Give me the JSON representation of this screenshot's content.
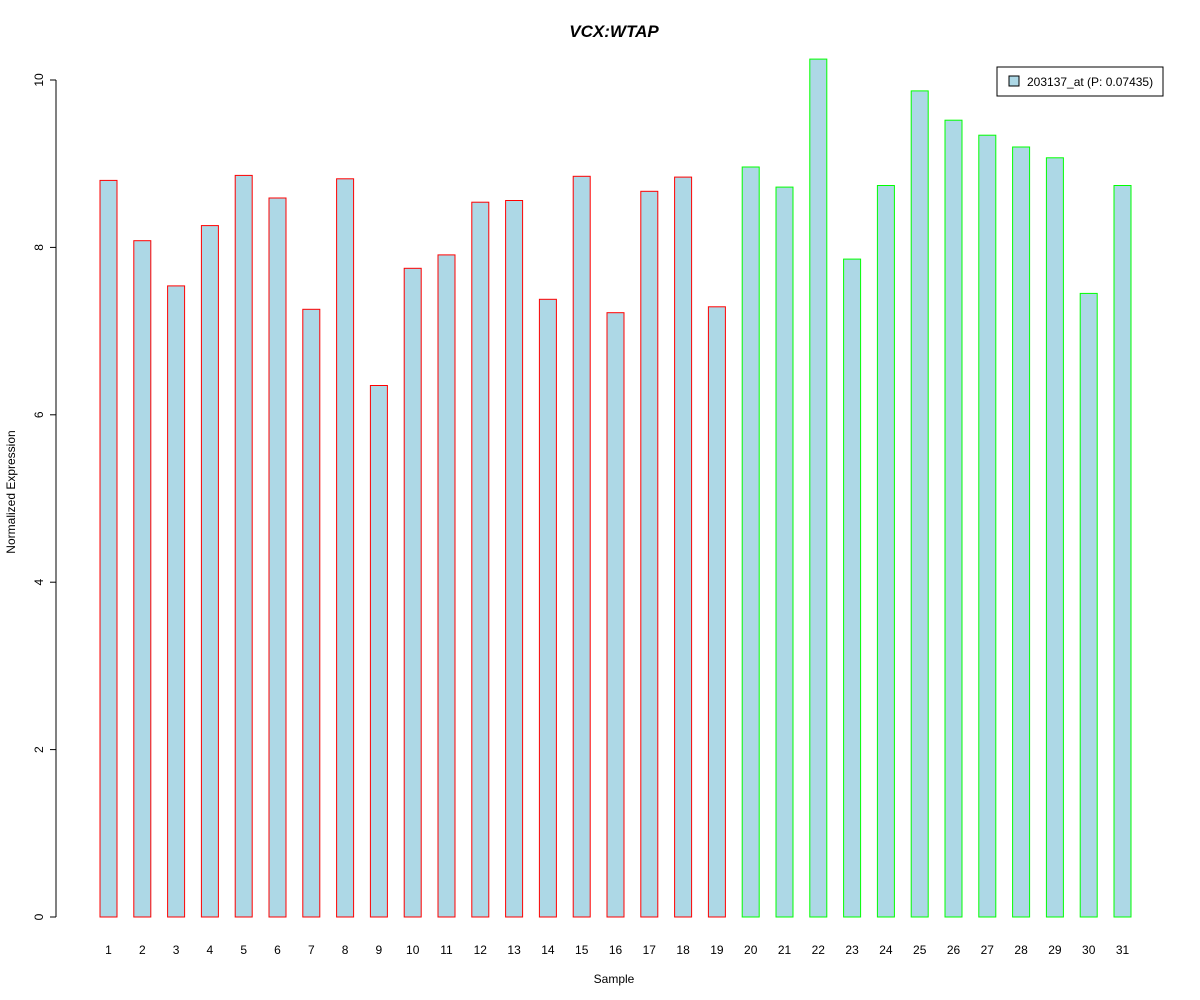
{
  "chart_data": {
    "type": "bar",
    "title": "VCX:WTAP",
    "title_color": "#0000cc",
    "xlabel": "Sample",
    "ylabel": "Normalized Expression",
    "ylim": [
      0,
      10.25
    ],
    "yticks": [
      0,
      2,
      4,
      6,
      8,
      10
    ],
    "grid": false,
    "legend_position": "top-right",
    "categories": [
      "1",
      "2",
      "3",
      "4",
      "5",
      "6",
      "7",
      "8",
      "9",
      "10",
      "11",
      "12",
      "13",
      "14",
      "15",
      "16",
      "17",
      "18",
      "19",
      "20",
      "21",
      "22",
      "23",
      "24",
      "25",
      "26",
      "27",
      "28",
      "29",
      "30",
      "31"
    ],
    "series": [
      {
        "name": "203137_at (P: 0.07435)",
        "fill": "#add8e6",
        "values": [
          8.8,
          8.08,
          7.54,
          8.26,
          8.86,
          8.59,
          7.26,
          8.82,
          6.35,
          7.75,
          7.91,
          8.54,
          8.56,
          7.38,
          8.85,
          7.22,
          8.67,
          8.84,
          7.29,
          8.96,
          8.72,
          10.25,
          7.86,
          8.74,
          9.87,
          9.52,
          9.34,
          9.2,
          9.07,
          7.45,
          8.74
        ]
      }
    ],
    "group_border_colors": {
      "1-19": "#ff0000",
      "20-31": "#00ff00"
    }
  }
}
